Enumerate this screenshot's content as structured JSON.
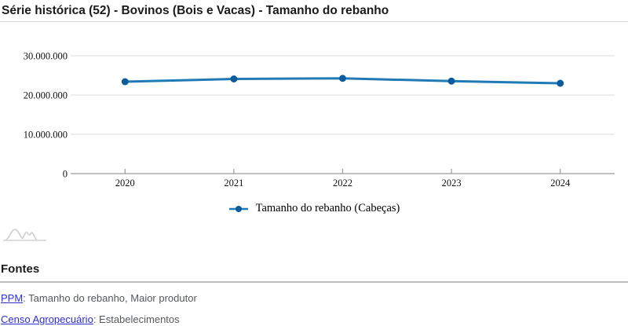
{
  "title": "Série histórica (52) - Bovinos (Bois e Vacas) - Tamanho do rebanho",
  "chart_data": {
    "type": "line",
    "x": [
      "2020",
      "2021",
      "2022",
      "2023",
      "2024"
    ],
    "series": [
      {
        "name": "Tamanho do rebanho (Cabeças)",
        "values": [
          23400000,
          24100000,
          24250000,
          23550000,
          23000000
        ]
      }
    ],
    "title": "",
    "xlabel": "",
    "ylabel": "",
    "ylim": [
      0,
      30000000
    ],
    "yticks": [
      0,
      10000000,
      20000000,
      30000000
    ],
    "ytick_labels": [
      "0",
      "10.000.000",
      "20.000.000",
      "30.000.000"
    ],
    "grid": true,
    "legend_position": "bottom",
    "line_color": "#207AB6",
    "marker_color": "#0B5C9C"
  },
  "legend": {
    "label": "Tamanho do rebanho (Cabeças)"
  },
  "icons": {
    "sparkline": "area-chart-icon"
  },
  "fontes": {
    "heading": "Fontes",
    "items": [
      {
        "link": "PPM",
        "text": ": Tamanho do rebanho, Maior produtor"
      },
      {
        "link": "Censo Agropecuário",
        "text": ": Estabelecimentos"
      }
    ]
  },
  "colors": {
    "line": "#207AB6",
    "marker": "#0B5C9C",
    "grid": "#e2e2e2",
    "axis": "#9a9a9a",
    "link": "#2D2DD6",
    "muted_text": "#55585c"
  }
}
